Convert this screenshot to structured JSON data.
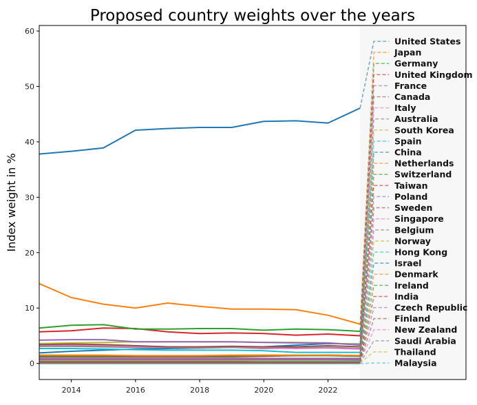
{
  "chart_data": {
    "type": "line",
    "title": "Proposed country weights over the years",
    "xlabel": "",
    "ylabel": "Index weight in %",
    "xlim": [
      2013,
      2026.3
    ],
    "ylim": [
      -2.9,
      61
    ],
    "xticks": [
      2014,
      2016,
      2018,
      2020,
      2022
    ],
    "yticks": [
      0,
      10,
      20,
      30,
      40,
      50,
      60
    ],
    "grid": false,
    "legend_placement": "right (inside, shaded region after 2023)",
    "shaded_region_color": "#f7f7f7",
    "x": [
      2013,
      2014,
      2015,
      2016,
      2017,
      2018,
      2019,
      2020,
      2021,
      2022,
      2023
    ],
    "colors": [
      "#1f77b4",
      "#ff7f0e",
      "#2ca02c",
      "#d62728",
      "#9467bd",
      "#8c564b",
      "#e377c2",
      "#7f7f7f",
      "#bcbd22",
      "#17becf"
    ],
    "series": [
      {
        "name": "United States",
        "values": [
          37.8,
          38.3,
          38.9,
          42.1,
          42.4,
          42.6,
          42.6,
          43.7,
          43.8,
          43.4,
          46.1
        ]
      },
      {
        "name": "Japan",
        "values": [
          14.4,
          11.9,
          10.7,
          10.0,
          10.9,
          10.3,
          9.8,
          9.8,
          9.7,
          8.7,
          7.1
        ]
      },
      {
        "name": "Germany",
        "values": [
          6.4,
          6.9,
          7.0,
          6.2,
          6.2,
          6.3,
          6.3,
          6.0,
          6.2,
          6.1,
          5.8
        ]
      },
      {
        "name": "United Kingdom",
        "values": [
          5.7,
          5.9,
          6.4,
          6.3,
          5.7,
          5.4,
          5.5,
          5.4,
          5.1,
          5.3,
          5.0
        ]
      },
      {
        "name": "France",
        "values": [
          4.2,
          4.3,
          4.3,
          3.9,
          3.9,
          3.9,
          3.9,
          3.8,
          3.7,
          3.7,
          3.3
        ]
      },
      {
        "name": "Canada",
        "values": [
          3.4,
          3.5,
          3.4,
          3.2,
          3.0,
          3.0,
          3.1,
          3.0,
          3.0,
          3.2,
          3.0
        ]
      },
      {
        "name": "Italy",
        "values": [
          3.3,
          3.3,
          3.2,
          3.0,
          2.9,
          2.9,
          3.0,
          2.8,
          2.7,
          2.8,
          2.6
        ]
      },
      {
        "name": "Australia",
        "values": [
          3.1,
          3.1,
          3.0,
          2.9,
          2.9,
          2.8,
          2.9,
          2.7,
          2.8,
          2.9,
          2.7
        ]
      },
      {
        "name": "South Korea",
        "values": [
          3.6,
          3.7,
          3.8,
          3.9,
          3.9,
          3.9,
          3.9,
          3.8,
          3.8,
          3.7,
          3.4
        ]
      },
      {
        "name": "Spain",
        "values": [
          2.7,
          2.7,
          2.6,
          2.5,
          2.4,
          2.4,
          2.4,
          2.3,
          2.0,
          2.0,
          2.0
        ]
      },
      {
        "name": "China",
        "values": [
          1.9,
          2.2,
          2.4,
          2.6,
          2.7,
          2.8,
          2.9,
          3.0,
          3.3,
          3.6,
          3.5
        ]
      },
      {
        "name": "Netherlands",
        "values": [
          1.5,
          1.5,
          1.5,
          1.4,
          1.4,
          1.4,
          1.5,
          1.5,
          1.5,
          1.5,
          1.4
        ]
      },
      {
        "name": "Switzerland",
        "values": [
          1.3,
          1.3,
          1.3,
          1.3,
          1.3,
          1.3,
          1.3,
          1.4,
          1.4,
          1.4,
          1.3
        ]
      },
      {
        "name": "Taiwan",
        "values": [
          1.2,
          1.2,
          1.2,
          1.2,
          1.2,
          1.2,
          1.2,
          1.3,
          1.4,
          1.5,
          1.4
        ]
      },
      {
        "name": "Poland",
        "values": [
          0.9,
          0.9,
          0.9,
          0.9,
          0.9,
          0.9,
          0.9,
          0.9,
          0.9,
          0.9,
          0.9
        ]
      },
      {
        "name": "Sweden",
        "values": [
          0.8,
          0.8,
          0.8,
          0.8,
          0.8,
          0.8,
          0.8,
          0.8,
          0.8,
          0.8,
          0.8
        ]
      },
      {
        "name": "Singapore",
        "values": [
          0.7,
          0.7,
          0.7,
          0.7,
          0.7,
          0.7,
          0.7,
          0.7,
          0.7,
          0.7,
          0.7
        ]
      },
      {
        "name": "Belgium",
        "values": [
          0.7,
          0.7,
          0.7,
          0.7,
          0.7,
          0.7,
          0.7,
          0.7,
          0.7,
          0.7,
          0.6
        ]
      },
      {
        "name": "Norway",
        "values": [
          0.6,
          0.6,
          0.6,
          0.6,
          0.6,
          0.6,
          0.6,
          0.6,
          0.6,
          0.6,
          0.6
        ]
      },
      {
        "name": "Hong Kong",
        "values": [
          0.6,
          0.6,
          0.6,
          0.6,
          0.6,
          0.6,
          0.6,
          0.5,
          0.5,
          0.5,
          0.5
        ]
      },
      {
        "name": "Israel",
        "values": [
          0.5,
          0.5,
          0.5,
          0.5,
          0.5,
          0.5,
          0.5,
          0.5,
          0.5,
          0.5,
          0.5
        ]
      },
      {
        "name": "Denmark",
        "values": [
          0.4,
          0.4,
          0.4,
          0.4,
          0.4,
          0.4,
          0.4,
          0.4,
          0.4,
          0.4,
          0.4
        ]
      },
      {
        "name": "Ireland",
        "values": [
          0.4,
          0.4,
          0.4,
          0.4,
          0.4,
          0.4,
          0.4,
          0.4,
          0.4,
          0.4,
          0.4
        ]
      },
      {
        "name": "India",
        "values": [
          0.3,
          0.3,
          0.3,
          0.3,
          0.3,
          0.3,
          0.3,
          0.3,
          0.3,
          0.3,
          0.3
        ]
      },
      {
        "name": "Czech Republic",
        "values": [
          0.3,
          0.3,
          0.3,
          0.3,
          0.3,
          0.3,
          0.3,
          0.3,
          0.3,
          0.3,
          0.3
        ]
      },
      {
        "name": "Finland",
        "values": [
          0.2,
          0.2,
          0.2,
          0.2,
          0.2,
          0.2,
          0.2,
          0.2,
          0.2,
          0.2,
          0.2
        ]
      },
      {
        "name": "New Zealand",
        "values": [
          0.2,
          0.2,
          0.2,
          0.2,
          0.2,
          0.2,
          0.2,
          0.2,
          0.2,
          0.2,
          0.2
        ]
      },
      {
        "name": "Saudi Arabia",
        "values": [
          0.1,
          0.1,
          0.1,
          0.1,
          0.1,
          0.1,
          0.1,
          0.1,
          0.1,
          0.1,
          0.1
        ]
      },
      {
        "name": "Thailand",
        "values": [
          0.1,
          0.1,
          0.1,
          0.1,
          0.1,
          0.1,
          0.1,
          0.1,
          0.1,
          0.1,
          0.1
        ]
      },
      {
        "name": "Malaysia",
        "values": [
          0.0,
          0.0,
          0.0,
          0.0,
          0.0,
          0.0,
          0.0,
          0.0,
          0.0,
          0.0,
          0.0
        ]
      }
    ]
  }
}
